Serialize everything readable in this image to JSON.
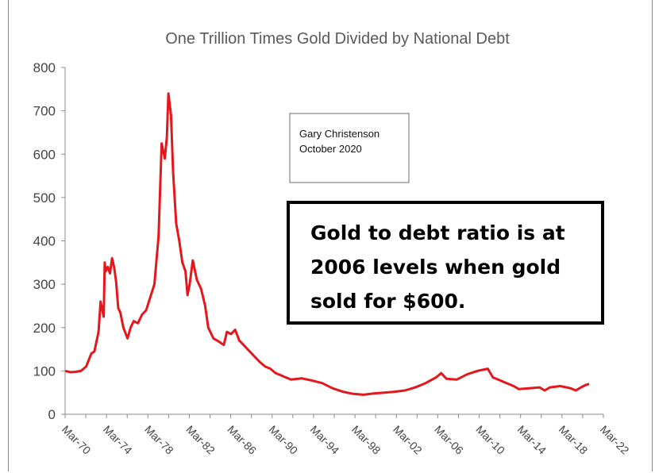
{
  "chart_data": {
    "type": "line",
    "title": "One Trillion Times Gold Divided by National Debt",
    "xlabel": "",
    "ylabel": "",
    "ylim": [
      0,
      800
    ],
    "yticks": [
      "0",
      "100",
      "200",
      "300",
      "400",
      "500",
      "600",
      "700",
      "800"
    ],
    "xticks": [
      "Mar-70",
      "Mar-74",
      "Mar-78",
      "Mar-82",
      "Mar-86",
      "Mar-90",
      "Mar-94",
      "Mar-98",
      "Mar-02",
      "Mar-06",
      "Mar-10",
      "Mar-14",
      "Mar-18",
      "Mar-22"
    ],
    "xlim": [
      1970.17,
      2022.17
    ],
    "grid": false,
    "legend": "none",
    "series_color": "#e3171c",
    "series": [
      {
        "x": [
          1970.2,
          1970.7,
          1971.2,
          1971.7,
          1972.2,
          1972.7,
          1973.0,
          1973.4,
          1973.6,
          1973.9,
          1974.0,
          1974.1,
          1974.3,
          1974.5,
          1974.7,
          1974.9,
          1975.1,
          1975.3,
          1975.5,
          1975.8,
          1976.2,
          1976.5,
          1976.8,
          1977.2,
          1977.6,
          1978.0,
          1978.4,
          1978.8,
          1979.2,
          1979.5,
          1979.8,
          1980.0,
          1980.15,
          1980.4,
          1980.6,
          1980.9,
          1981.2,
          1981.5,
          1981.8,
          1982.0,
          1982.2,
          1982.5,
          1982.9,
          1983.3,
          1983.7,
          1984.0,
          1984.5,
          1985.0,
          1985.5,
          1985.8,
          1986.2,
          1986.6,
          1987.0,
          1987.4,
          1987.8,
          1988.2,
          1988.6,
          1989.0,
          1989.5,
          1990.0,
          1990.5,
          1991.0,
          1991.5,
          1992.0,
          1993.0,
          1994.0,
          1995.0,
          1996.0,
          1997.0,
          1998.0,
          1999.0,
          2000.0,
          2001.0,
          2002.0,
          2003.0,
          2004.0,
          2005.0,
          2006.0,
          2006.5,
          2007.0,
          2008.0,
          2009.0,
          2010.0,
          2011.0,
          2011.5,
          2012.0,
          2013.0,
          2013.5,
          2014.0,
          2015.0,
          2016.0,
          2016.5,
          2017.0,
          2018.0,
          2019.0,
          2019.5,
          2020.0,
          2020.5,
          2020.8
        ],
        "y": [
          100,
          97,
          98,
          100,
          110,
          140,
          145,
          190,
          260,
          225,
          350,
          330,
          340,
          325,
          360,
          340,
          305,
          245,
          235,
          200,
          175,
          200,
          215,
          210,
          230,
          240,
          270,
          300,
          410,
          625,
          590,
          640,
          740,
          690,
          560,
          440,
          400,
          350,
          330,
          275,
          300,
          355,
          310,
          290,
          250,
          200,
          175,
          168,
          160,
          190,
          185,
          195,
          170,
          160,
          150,
          140,
          130,
          120,
          110,
          105,
          95,
          90,
          85,
          80,
          83,
          78,
          72,
          60,
          52,
          47,
          45,
          48,
          50,
          52,
          55,
          62,
          72,
          85,
          95,
          82,
          80,
          92,
          100,
          105,
          85,
          80,
          70,
          65,
          58,
          60,
          62,
          55,
          62,
          65,
          60,
          55,
          62,
          68,
          70
        ]
      }
    ],
    "annotations": [
      [
        "Gary Christenson",
        "October 2020"
      ],
      [
        "Gold to debt ratio is at",
        "2006 levels when gold",
        "sold for $600."
      ]
    ]
  }
}
